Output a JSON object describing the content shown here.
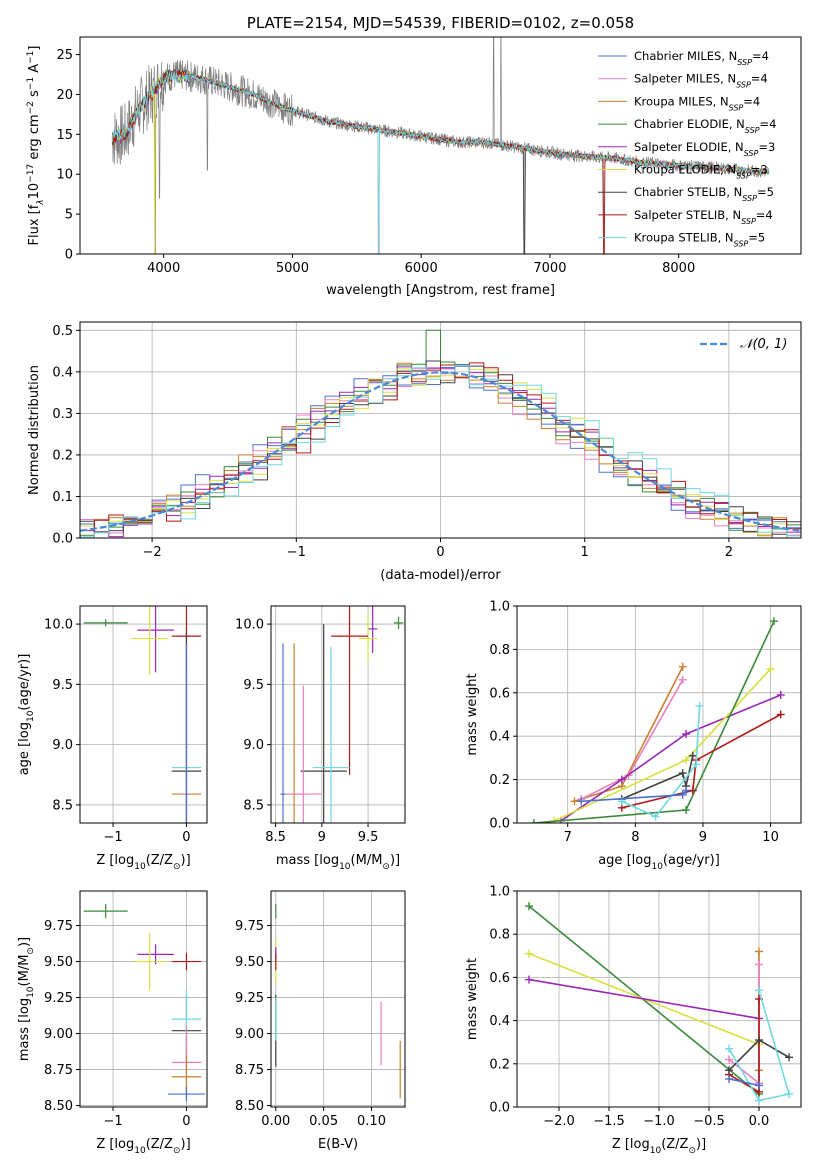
{
  "title": "PLATE=2154, MJD=54539, FIBERID=0102, z=0.058",
  "colors": {
    "Chabrier MILES": "#4c72d0",
    "Salpeter MILES": "#e880c0",
    "Kroupa MILES": "#c88030",
    "Chabrier ELODIE": "#3a8a3a",
    "Salpeter ELODIE": "#9a28b8",
    "Kroupa ELODIE": "#d8e040",
    "Chabrier STELIB": "#404040",
    "Salpeter STELIB": "#b01818",
    "Kroupa STELIB": "#70d8e0",
    "data": "#808080",
    "gaussian": "#4a8ad8"
  },
  "chart_data": [
    {
      "type": "line",
      "panel": "spectrum",
      "title": "PLATE=2154, MJD=54539, FIBERID=0102, z=0.058",
      "xlabel": "wavelength [Angstrom, rest frame]",
      "ylabel": "Flux [f$_\\lambda$10$^{-17}$ erg cm$^{-2}$ s$^{-1}$ A$^{-1}$]",
      "ylabel_parts": [
        "Flux [f",
        "λ",
        "10",
        "−17",
        " erg cm",
        "−2",
        " s",
        "−1",
        " A",
        "−1",
        "]"
      ],
      "xlim": [
        3350,
        8950
      ],
      "ylim": [
        0,
        27.2
      ],
      "xticks": [
        4000,
        5000,
        6000,
        7000,
        8000
      ],
      "yticks": [
        0,
        5,
        10,
        15,
        20,
        25
      ],
      "legend_placement": "upper right",
      "legend": [
        {
          "label": "Chabrier MILES, N",
          "sub": "SSP",
          "n": "=4",
          "model": "Chabrier MILES"
        },
        {
          "label": "Salpeter MILES, N",
          "sub": "SSP",
          "n": "=4",
          "model": "Salpeter MILES"
        },
        {
          "label": "Kroupa MILES, N",
          "sub": "SSP",
          "n": "=4",
          "model": "Kroupa MILES"
        },
        {
          "label": "Chabrier ELODIE, N",
          "sub": "SSP",
          "n": "=4",
          "model": "Chabrier ELODIE"
        },
        {
          "label": "Salpeter ELODIE, N",
          "sub": "SSP",
          "n": "=3",
          "model": "Salpeter ELODIE"
        },
        {
          "label": "Kroupa ELODIE, N",
          "sub": "SSP",
          "n": "=3",
          "model": "Kroupa ELODIE"
        },
        {
          "label": "Chabrier STELIB, N",
          "sub": "SSP",
          "n": "=5",
          "model": "Chabrier STELIB"
        },
        {
          "label": "Salpeter STELIB, N",
          "sub": "SSP",
          "n": "=4",
          "model": "Salpeter STELIB"
        },
        {
          "label": "Kroupa STELIB, N",
          "sub": "SSP",
          "n": "=5",
          "model": "Kroupa STELIB"
        }
      ],
      "continuum": {
        "x": [
          3600,
          3700,
          3800,
          3900,
          4000,
          4100,
          4300,
          4500,
          4700,
          4900,
          5100,
          5300,
          5500,
          5700,
          5900,
          6100,
          6300,
          6500,
          6700,
          6900,
          7100,
          7300,
          7500,
          7700,
          7900,
          8100,
          8300,
          8500,
          8700
        ],
        "y": [
          14.5,
          15,
          18,
          20,
          22,
          22.5,
          22,
          21,
          20,
          18.5,
          17.5,
          16.5,
          16,
          15.5,
          15,
          14.5,
          14,
          14,
          13.5,
          13,
          12.5,
          12.2,
          12,
          11.5,
          11.2,
          11,
          10.8,
          10.5,
          10.3
        ]
      },
      "absorption_dips": [
        {
          "x": 3934,
          "y": 0
        },
        {
          "x": 3968,
          "y": 7
        },
        {
          "x": 4340,
          "y": 10.5
        },
        {
          "x": 5670,
          "y": 0
        },
        {
          "x": 6800,
          "y": 0
        },
        {
          "x": 7420,
          "y": 0
        }
      ],
      "emission_spikes": [
        {
          "x": 6563,
          "y": 27.2
        },
        {
          "x": 6620,
          "y": 27.2
        }
      ]
    },
    {
      "type": "histogram",
      "panel": "residuals",
      "xlabel": "(data-model)/error",
      "ylabel": "Normed distribution",
      "xlim": [
        -2.5,
        2.5
      ],
      "ylim": [
        0,
        0.52
      ],
      "xticks": [
        -2,
        -1,
        0,
        1,
        2
      ],
      "yticks": [
        0.0,
        0.1,
        0.2,
        0.3,
        0.4,
        0.5
      ],
      "grid": true,
      "legend_placement": "upper right",
      "legend": [
        "𝒩(0, 1)"
      ],
      "bin_width": 0.1
    },
    {
      "type": "scatter",
      "panel": "Z-age",
      "xlabel": "Z [log$_{10}$(Z/Z$_\\odot$)]",
      "xlabel_parts": [
        "Z [log",
        "10",
        "(Z/Z",
        "⊙",
        ")]"
      ],
      "ylabel": "age  [log$_{10}$(age/yr)]",
      "ylabel_parts": [
        "age  [log",
        "10",
        "(age/yr)]"
      ],
      "xlim": [
        -1.45,
        0.28
      ],
      "ylim": [
        8.35,
        10.15
      ],
      "xticks": [
        -1,
        0
      ],
      "yticks": [
        8.5,
        9.0,
        9.5,
        10.0
      ],
      "grid": true,
      "points": [
        {
          "model": "Chabrier ELODIE",
          "x": -1.1,
          "y": 10.01,
          "xerr": 0.3,
          "yerr": 0.03
        },
        {
          "model": "Salpeter ELODIE",
          "x": -0.42,
          "y": 9.95,
          "xerr": 0.25,
          "yerr": 0.35
        },
        {
          "model": "Kroupa ELODIE",
          "x": -0.5,
          "y": 9.88,
          "xerr": 0.25,
          "yerr": 0.3
        },
        {
          "model": "Salpeter STELIB",
          "x": 0.0,
          "y": 9.9,
          "xerr": 0.2,
          "yerr": 0.3
        },
        {
          "model": "Chabrier STELIB",
          "x": 0.0,
          "y": 8.78,
          "xerr": 0.2,
          "yerr": 1.15
        },
        {
          "model": "Kroupa STELIB",
          "x": 0.0,
          "y": 8.81,
          "xerr": 0.2,
          "yerr": 1.0
        },
        {
          "model": "Kroupa MILES",
          "x": 0.0,
          "y": 8.59,
          "xerr": 0.2,
          "yerr": 1.25
        },
        {
          "model": "Salpeter MILES",
          "x": 0.0,
          "y": 8.59,
          "xerr": 0.05,
          "yerr": 1.2
        },
        {
          "model": "Chabrier MILES",
          "x": 0.0,
          "y": 8.59,
          "xerr": 0.02,
          "yerr": 1.25
        }
      ]
    },
    {
      "type": "scatter",
      "panel": "mass-age",
      "xlabel": "mass [log$_{10}$(M/M$_\\odot$)]",
      "xlabel_parts": [
        "mass [log",
        "10",
        "(M/M",
        "⊙",
        ")]"
      ],
      "xlim": [
        8.45,
        9.9
      ],
      "ylim": [
        8.35,
        10.15
      ],
      "xticks": [
        8.5,
        9.0,
        9.5
      ],
      "yticks": [
        8.5,
        9.0,
        9.5,
        10.0
      ],
      "grid": true,
      "points": [
        {
          "model": "Chabrier ELODIE",
          "x": 9.83,
          "y": 10.01,
          "xerr": 0.05,
          "yerr": 0.05
        },
        {
          "model": "Salpeter ELODIE",
          "x": 9.55,
          "y": 9.96,
          "xerr": 0.05,
          "yerr": 0.2
        },
        {
          "model": "Kroupa ELODIE",
          "x": 9.5,
          "y": 9.88,
          "xerr": 0.1,
          "yerr": 0.2
        },
        {
          "model": "Salpeter STELIB",
          "x": 9.3,
          "y": 9.9,
          "xerr": 0.2,
          "yerr": 1.15
        },
        {
          "model": "Chabrier STELIB",
          "x": 9.02,
          "y": 8.78,
          "xerr": 0.25,
          "yerr": 1.22
        },
        {
          "model": "Kroupa STELIB",
          "x": 9.1,
          "y": 8.81,
          "xerr": 0.2,
          "yerr": 1.0
        },
        {
          "model": "Kroupa MILES",
          "x": 8.7,
          "y": 8.59,
          "xerr": 0.15,
          "yerr": 1.25
        },
        {
          "model": "Salpeter MILES",
          "x": 8.8,
          "y": 8.59,
          "xerr": 0.2,
          "yerr": 0.9
        },
        {
          "model": "Chabrier MILES",
          "x": 8.58,
          "y": 8.59,
          "xerr": 0.02,
          "yerr": 1.25
        }
      ]
    },
    {
      "type": "line",
      "panel": "age-weight",
      "xlabel": "age  [log$_{10}$(age/yr)]",
      "xlabel_parts": [
        "age  [log",
        "10",
        "(age/yr)]"
      ],
      "ylabel": "mass weight",
      "xlim": [
        6.25,
        10.45
      ],
      "ylim": [
        0,
        1.0
      ],
      "xticks": [
        7,
        8,
        9,
        10
      ],
      "yticks": [
        0.0,
        0.2,
        0.4,
        0.6,
        0.8,
        1.0
      ],
      "grid": true,
      "series": [
        {
          "model": "Kroupa MILES",
          "x": [
            7.1,
            7.8,
            8.7
          ],
          "y": [
            0.1,
            0.17,
            0.72
          ]
        },
        {
          "model": "Salpeter MILES",
          "x": [
            7.2,
            7.9,
            8.7
          ],
          "y": [
            0.11,
            0.22,
            0.66
          ]
        },
        {
          "model": "Salpeter ELODIE",
          "x": [
            6.9,
            7.8,
            8.75,
            10.15
          ],
          "y": [
            0.01,
            0.2,
            0.41,
            0.59
          ]
        },
        {
          "model": "Kroupa ELODIE",
          "x": [
            6.8,
            8.75,
            10.0
          ],
          "y": [
            0.01,
            0.29,
            0.71
          ]
        },
        {
          "model": "Chabrier ELODIE",
          "x": [
            6.5,
            8.75,
            10.05
          ],
          "y": [
            0.0,
            0.06,
            0.93
          ]
        },
        {
          "model": "Salpeter STELIB",
          "x": [
            7.8,
            8.85,
            8.9,
            10.15
          ],
          "y": [
            0.07,
            0.15,
            0.29,
            0.5
          ]
        },
        {
          "model": "Chabrier STELIB",
          "x": [
            7.8,
            8.7,
            8.75,
            8.85
          ],
          "y": [
            0.11,
            0.23,
            0.17,
            0.31
          ]
        },
        {
          "model": "Kroupa STELIB",
          "x": [
            7.8,
            8.3,
            8.9,
            8.95
          ],
          "y": [
            0.1,
            0.03,
            0.27,
            0.54
          ]
        },
        {
          "model": "Chabrier MILES",
          "x": [
            7.2,
            8.7,
            8.75
          ],
          "y": [
            0.1,
            0.13,
            0.15
          ]
        }
      ]
    },
    {
      "type": "scatter",
      "panel": "Z-mass",
      "xlabel": "Z [log$_{10}$(Z/Z$_\\odot$)]",
      "xlabel_parts": [
        "Z [log",
        "10",
        "(Z/Z",
        "⊙",
        ")]"
      ],
      "ylabel": "mass [log$_{10}$(M/M$_\\odot$)]",
      "ylabel_parts": [
        "mass [log",
        "10",
        "(M/M",
        "⊙",
        ")]"
      ],
      "xlim": [
        -1.45,
        0.28
      ],
      "ylim": [
        8.49,
        9.99
      ],
      "xticks": [
        -1,
        0
      ],
      "yticks": [
        8.5,
        8.75,
        9.0,
        9.25,
        9.5,
        9.75
      ],
      "grid": true,
      "points": [
        {
          "model": "Chabrier ELODIE",
          "x": -1.1,
          "y": 9.85,
          "xerr": 0.3,
          "yerr": 0.05
        },
        {
          "model": "Salpeter ELODIE",
          "x": -0.42,
          "y": 9.55,
          "xerr": 0.25,
          "yerr": 0.07
        },
        {
          "model": "Kroupa ELODIE",
          "x": -0.5,
          "y": 9.5,
          "xerr": 0.22,
          "yerr": 0.2
        },
        {
          "model": "Salpeter STELIB",
          "x": 0.0,
          "y": 9.5,
          "xerr": 0.2,
          "yerr": 0.06
        },
        {
          "model": "Chabrier STELIB",
          "x": 0.0,
          "y": 9.02,
          "xerr": 0.2,
          "yerr": 0.25
        },
        {
          "model": "Kroupa STELIB",
          "x": 0.0,
          "y": 9.1,
          "xerr": 0.2,
          "yerr": 0.2
        },
        {
          "model": "Salpeter MILES",
          "x": 0.0,
          "y": 8.8,
          "xerr": 0.2,
          "yerr": 0.25
        },
        {
          "model": "Kroupa MILES",
          "x": 0.0,
          "y": 8.7,
          "xerr": 0.2,
          "yerr": 0.15
        },
        {
          "model": "Chabrier MILES",
          "x": 0.0,
          "y": 8.58,
          "xerr": 0.25,
          "yerr": 0.05
        }
      ]
    },
    {
      "type": "scatter",
      "panel": "EBV-mass",
      "xlabel": "E(B-V)",
      "xlim": [
        -0.005,
        0.135
      ],
      "ylim": [
        8.49,
        9.99
      ],
      "xticks": [
        0.0,
        0.05,
        0.1
      ],
      "xtick_labels": [
        "0.00",
        "0.05",
        "0.10"
      ],
      "yticks": [
        8.5,
        8.75,
        9.0,
        9.25,
        9.5,
        9.75
      ],
      "grid": true,
      "points": [
        {
          "model": "Chabrier ELODIE",
          "x": 0.0,
          "y": 9.85,
          "xerr": 0.0,
          "yerr": 0.05
        },
        {
          "model": "Kroupa ELODIE",
          "x": 0.0,
          "y": 9.5,
          "xerr": 0.0,
          "yerr": 0.15
        },
        {
          "model": "Salpeter ELODIE",
          "x": 0.0,
          "y": 9.55,
          "xerr": 0.0,
          "yerr": 0.05
        },
        {
          "model": "Salpeter STELIB",
          "x": 0.0,
          "y": 9.5,
          "xerr": 0.0,
          "yerr": 0.06
        },
        {
          "model": "Chabrier STELIB",
          "x": 0.0,
          "y": 9.02,
          "xerr": 0.0,
          "yerr": 0.25
        },
        {
          "model": "Kroupa STELIB",
          "x": 0.0,
          "y": 9.1,
          "xerr": 0.0,
          "yerr": 0.15
        },
        {
          "model": "Salpeter MILES",
          "x": 0.11,
          "y": 9.0,
          "xerr": 0.0,
          "yerr": 0.22
        },
        {
          "model": "Kroupa MILES",
          "x": 0.13,
          "y": 8.75,
          "xerr": 0.0,
          "yerr": 0.2
        }
      ]
    },
    {
      "type": "line",
      "panel": "Z-weight",
      "xlabel": "Z [log$_{10}$(Z/Z$_\\odot$)]",
      "xlabel_parts": [
        "Z [log",
        "10",
        "(Z/Z",
        "⊙",
        ")]"
      ],
      "ylabel": "mass weight",
      "xlim": [
        -2.42,
        0.42
      ],
      "ylim": [
        0,
        1.0
      ],
      "xticks": [
        -2.0,
        -1.5,
        -1.0,
        -0.5,
        0.0
      ],
      "xtick_labels": [
        "−2.0",
        "−1.5",
        "−1.0",
        "−0.5",
        "0.0"
      ],
      "yticks": [
        0.0,
        0.2,
        0.4,
        0.6,
        0.8,
        1.0
      ],
      "grid": true,
      "series": [
        {
          "model": "Chabrier ELODIE",
          "x": [
            -2.3,
            0.0
          ],
          "y": [
            0.93,
            0.06
          ]
        },
        {
          "model": "Kroupa ELODIE",
          "x": [
            -2.3,
            0.0
          ],
          "y": [
            0.71,
            0.29
          ]
        },
        {
          "model": "Salpeter ELODIE",
          "x": [
            -2.3,
            0.0
          ],
          "y": [
            0.59,
            0.41
          ]
        },
        {
          "model": "Kroupa MILES",
          "x": [
            0.0,
            0.0,
            0.0
          ],
          "y": [
            0.1,
            0.17,
            0.72
          ]
        },
        {
          "model": "Salpeter MILES",
          "x": [
            -0.3,
            0.0,
            0.0
          ],
          "y": [
            0.22,
            0.11,
            0.66
          ]
        },
        {
          "model": "Salpeter STELIB",
          "x": [
            -0.3,
            0.0,
            0.0
          ],
          "y": [
            0.15,
            0.07,
            0.5
          ]
        },
        {
          "model": "Chabrier STELIB",
          "x": [
            -0.3,
            0.0,
            0.3
          ],
          "y": [
            0.17,
            0.31,
            0.23
          ]
        },
        {
          "model": "Kroupa STELIB",
          "x": [
            -0.3,
            0.0,
            0.3,
            0.0
          ],
          "y": [
            0.27,
            0.03,
            0.06,
            0.54
          ]
        },
        {
          "model": "Chabrier MILES",
          "x": [
            -0.3,
            0.0
          ],
          "y": [
            0.13,
            0.1
          ]
        }
      ]
    }
  ]
}
